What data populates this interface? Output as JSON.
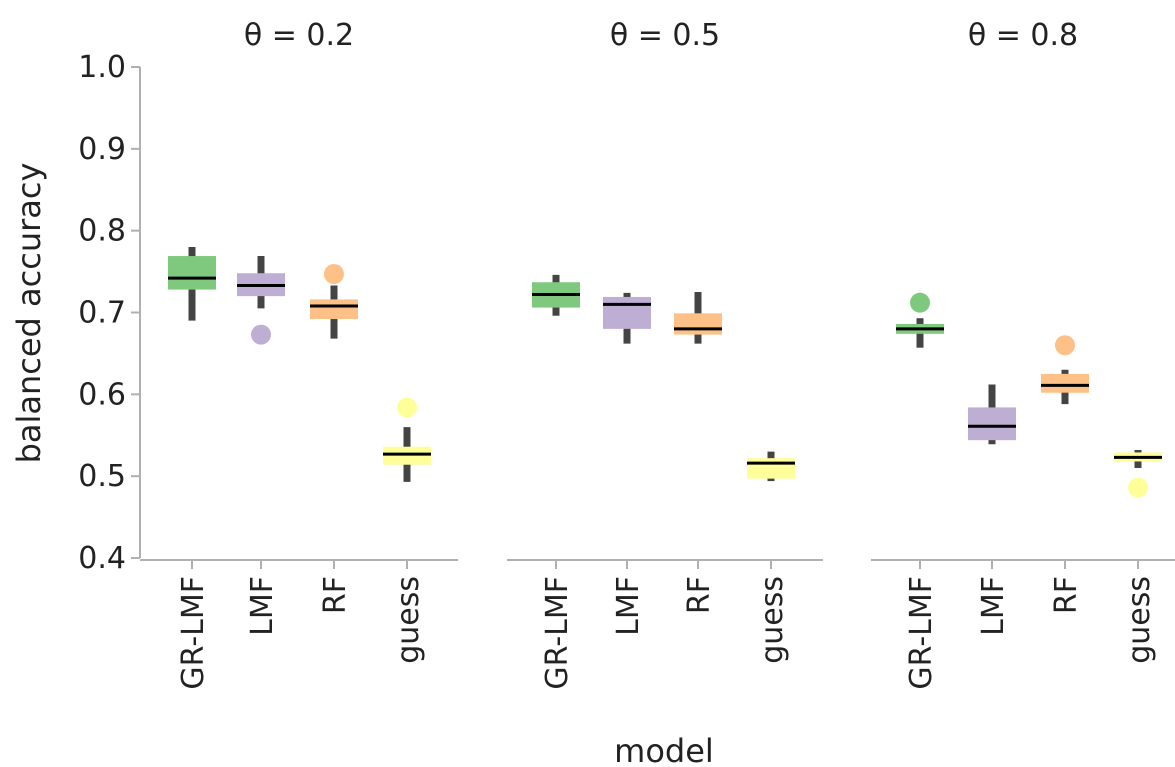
{
  "chart_data": {
    "type": "box",
    "ylabel": "balanced accuracy",
    "xlabel": "model",
    "ylim": [
      0.4,
      1.0
    ],
    "yticks": [
      "0.4",
      "0.5",
      "0.6",
      "0.7",
      "0.8",
      "0.9",
      "1.0"
    ],
    "categories": [
      "GR-LMF",
      "LMF",
      "RF",
      "guess"
    ],
    "colors": {
      "GR-LMF": "#7fc97f",
      "LMF": "#beaed4",
      "RF": "#fdc086",
      "guess": "#ffff99"
    },
    "panels": [
      {
        "title": "θ = 0.2",
        "boxes": [
          {
            "model": "GR-LMF",
            "q1": 0.728,
            "median": 0.742,
            "q3": 0.769,
            "whisker_low": 0.69,
            "whisker_high": 0.78,
            "outliers": []
          },
          {
            "model": "LMF",
            "q1": 0.72,
            "median": 0.733,
            "q3": 0.748,
            "whisker_low": 0.705,
            "whisker_high": 0.769,
            "outliers": [
              0.673
            ]
          },
          {
            "model": "RF",
            "q1": 0.692,
            "median": 0.708,
            "q3": 0.716,
            "whisker_low": 0.668,
            "whisker_high": 0.733,
            "outliers": [
              0.747
            ]
          },
          {
            "model": "guess",
            "q1": 0.514,
            "median": 0.527,
            "q3": 0.536,
            "whisker_low": 0.493,
            "whisker_high": 0.56,
            "outliers": [
              0.584
            ]
          }
        ]
      },
      {
        "title": "θ = 0.5",
        "boxes": [
          {
            "model": "GR-LMF",
            "q1": 0.706,
            "median": 0.722,
            "q3": 0.737,
            "whisker_low": 0.696,
            "whisker_high": 0.746,
            "outliers": []
          },
          {
            "model": "LMF",
            "q1": 0.68,
            "median": 0.71,
            "q3": 0.719,
            "whisker_low": 0.662,
            "whisker_high": 0.724,
            "outliers": []
          },
          {
            "model": "RF",
            "q1": 0.673,
            "median": 0.68,
            "q3": 0.699,
            "whisker_low": 0.662,
            "whisker_high": 0.725,
            "outliers": []
          },
          {
            "model": "guess",
            "q1": 0.497,
            "median": 0.516,
            "q3": 0.522,
            "whisker_low": 0.494,
            "whisker_high": 0.53,
            "outliers": []
          }
        ]
      },
      {
        "title": "θ = 0.8",
        "boxes": [
          {
            "model": "GR-LMF",
            "q1": 0.674,
            "median": 0.68,
            "q3": 0.686,
            "whisker_low": 0.657,
            "whisker_high": 0.693,
            "outliers": [
              0.712
            ]
          },
          {
            "model": "LMF",
            "q1": 0.544,
            "median": 0.561,
            "q3": 0.584,
            "whisker_low": 0.539,
            "whisker_high": 0.612,
            "outliers": []
          },
          {
            "model": "RF",
            "q1": 0.602,
            "median": 0.611,
            "q3": 0.625,
            "whisker_low": 0.588,
            "whisker_high": 0.63,
            "outliers": [
              0.66
            ]
          },
          {
            "model": "guess",
            "q1": 0.518,
            "median": 0.523,
            "q3": 0.529,
            "whisker_low": 0.51,
            "whisker_high": 0.532,
            "outliers": [
              0.486
            ]
          }
        ]
      }
    ]
  }
}
